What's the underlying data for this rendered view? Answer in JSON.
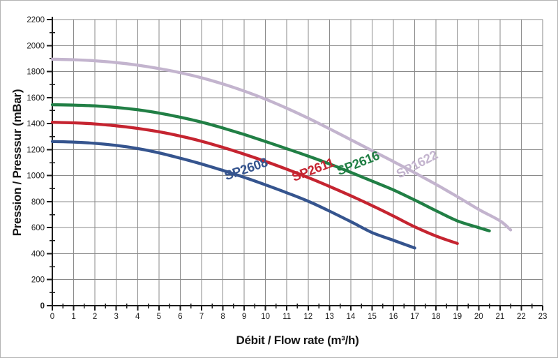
{
  "chart_data": {
    "type": "line",
    "title": "",
    "xlabel": "Débit / Flow rate (m³/h)",
    "ylabel": "Pression / Presssur (mBar)",
    "xlim": [
      0,
      23
    ],
    "ylim": [
      0,
      2200
    ],
    "x_ticks": [
      0,
      1,
      2,
      3,
      4,
      5,
      6,
      7,
      8,
      9,
      10,
      11,
      12,
      13,
      14,
      15,
      16,
      17,
      18,
      19,
      20,
      21,
      22,
      23
    ],
    "y_ticks": [
      0,
      200,
      400,
      600,
      800,
      1000,
      1200,
      1400,
      1600,
      1800,
      2000,
      2200
    ],
    "x_minor_step": 0.5,
    "y_minor_step": 100,
    "grid": true,
    "legend_position": "labels-on-curves",
    "colors": {
      "axis": "#1a1a1a",
      "grid": "#8a8a8a",
      "tick_text": "#1c1c1c"
    },
    "series": [
      {
        "name": "SP2608",
        "color": "#35548e",
        "label": {
          "x": 9.15,
          "y": 1020,
          "angle": -19
        },
        "points": [
          [
            0,
            1262
          ],
          [
            1,
            1258
          ],
          [
            2,
            1248
          ],
          [
            3,
            1232
          ],
          [
            4,
            1208
          ],
          [
            5,
            1175
          ],
          [
            6,
            1134
          ],
          [
            7,
            1089
          ],
          [
            8,
            1040
          ],
          [
            9,
            987
          ],
          [
            10,
            929
          ],
          [
            11,
            868
          ],
          [
            12,
            803
          ],
          [
            13,
            727
          ],
          [
            14,
            646
          ],
          [
            15,
            562
          ],
          [
            16,
            503
          ],
          [
            17,
            443
          ]
        ]
      },
      {
        "name": "SP2611",
        "color": "#c52430",
        "label": {
          "x": 12.3,
          "y": 1015,
          "angle": -21
        },
        "points": [
          [
            0,
            1410
          ],
          [
            1,
            1406
          ],
          [
            2,
            1397
          ],
          [
            3,
            1383
          ],
          [
            4,
            1363
          ],
          [
            5,
            1337
          ],
          [
            6,
            1304
          ],
          [
            7,
            1264
          ],
          [
            8,
            1217
          ],
          [
            9,
            1165
          ],
          [
            10,
            1109
          ],
          [
            11,
            1049
          ],
          [
            12,
            985
          ],
          [
            13,
            917
          ],
          [
            14,
            845
          ],
          [
            15,
            769
          ],
          [
            16,
            689
          ],
          [
            17,
            606
          ],
          [
            18,
            535
          ],
          [
            19,
            478
          ]
        ]
      },
      {
        "name": "SP2616",
        "color": "#217f45",
        "label": {
          "x": 14.42,
          "y": 1065,
          "angle": -22
        },
        "points": [
          [
            0,
            1545
          ],
          [
            1,
            1542
          ],
          [
            2,
            1536
          ],
          [
            3,
            1524
          ],
          [
            4,
            1506
          ],
          [
            5,
            1481
          ],
          [
            6,
            1449
          ],
          [
            7,
            1411
          ],
          [
            8,
            1366
          ],
          [
            9,
            1316
          ],
          [
            10,
            1262
          ],
          [
            11,
            1207
          ],
          [
            12,
            1150
          ],
          [
            13,
            1090
          ],
          [
            14,
            1025
          ],
          [
            15,
            958
          ],
          [
            16,
            890
          ],
          [
            17,
            812
          ],
          [
            18,
            730
          ],
          [
            19,
            652
          ],
          [
            20,
            600
          ],
          [
            20.5,
            575
          ]
        ]
      },
      {
        "name": "SP1622",
        "color": "#c3b4ce",
        "label": {
          "x": 17.2,
          "y": 1058,
          "angle": -28
        },
        "points": [
          [
            0,
            1895
          ],
          [
            1,
            1891
          ],
          [
            2,
            1883
          ],
          [
            3,
            1869
          ],
          [
            4,
            1849
          ],
          [
            5,
            1823
          ],
          [
            6,
            1791
          ],
          [
            7,
            1752
          ],
          [
            8,
            1705
          ],
          [
            9,
            1650
          ],
          [
            10,
            1588
          ],
          [
            11,
            1518
          ],
          [
            12,
            1442
          ],
          [
            13,
            1360
          ],
          [
            14,
            1276
          ],
          [
            15,
            1192
          ],
          [
            16,
            1108
          ],
          [
            17,
            1022
          ],
          [
            18,
            932
          ],
          [
            19,
            838
          ],
          [
            20,
            740
          ],
          [
            21,
            652
          ],
          [
            21.5,
            582
          ]
        ]
      }
    ]
  }
}
